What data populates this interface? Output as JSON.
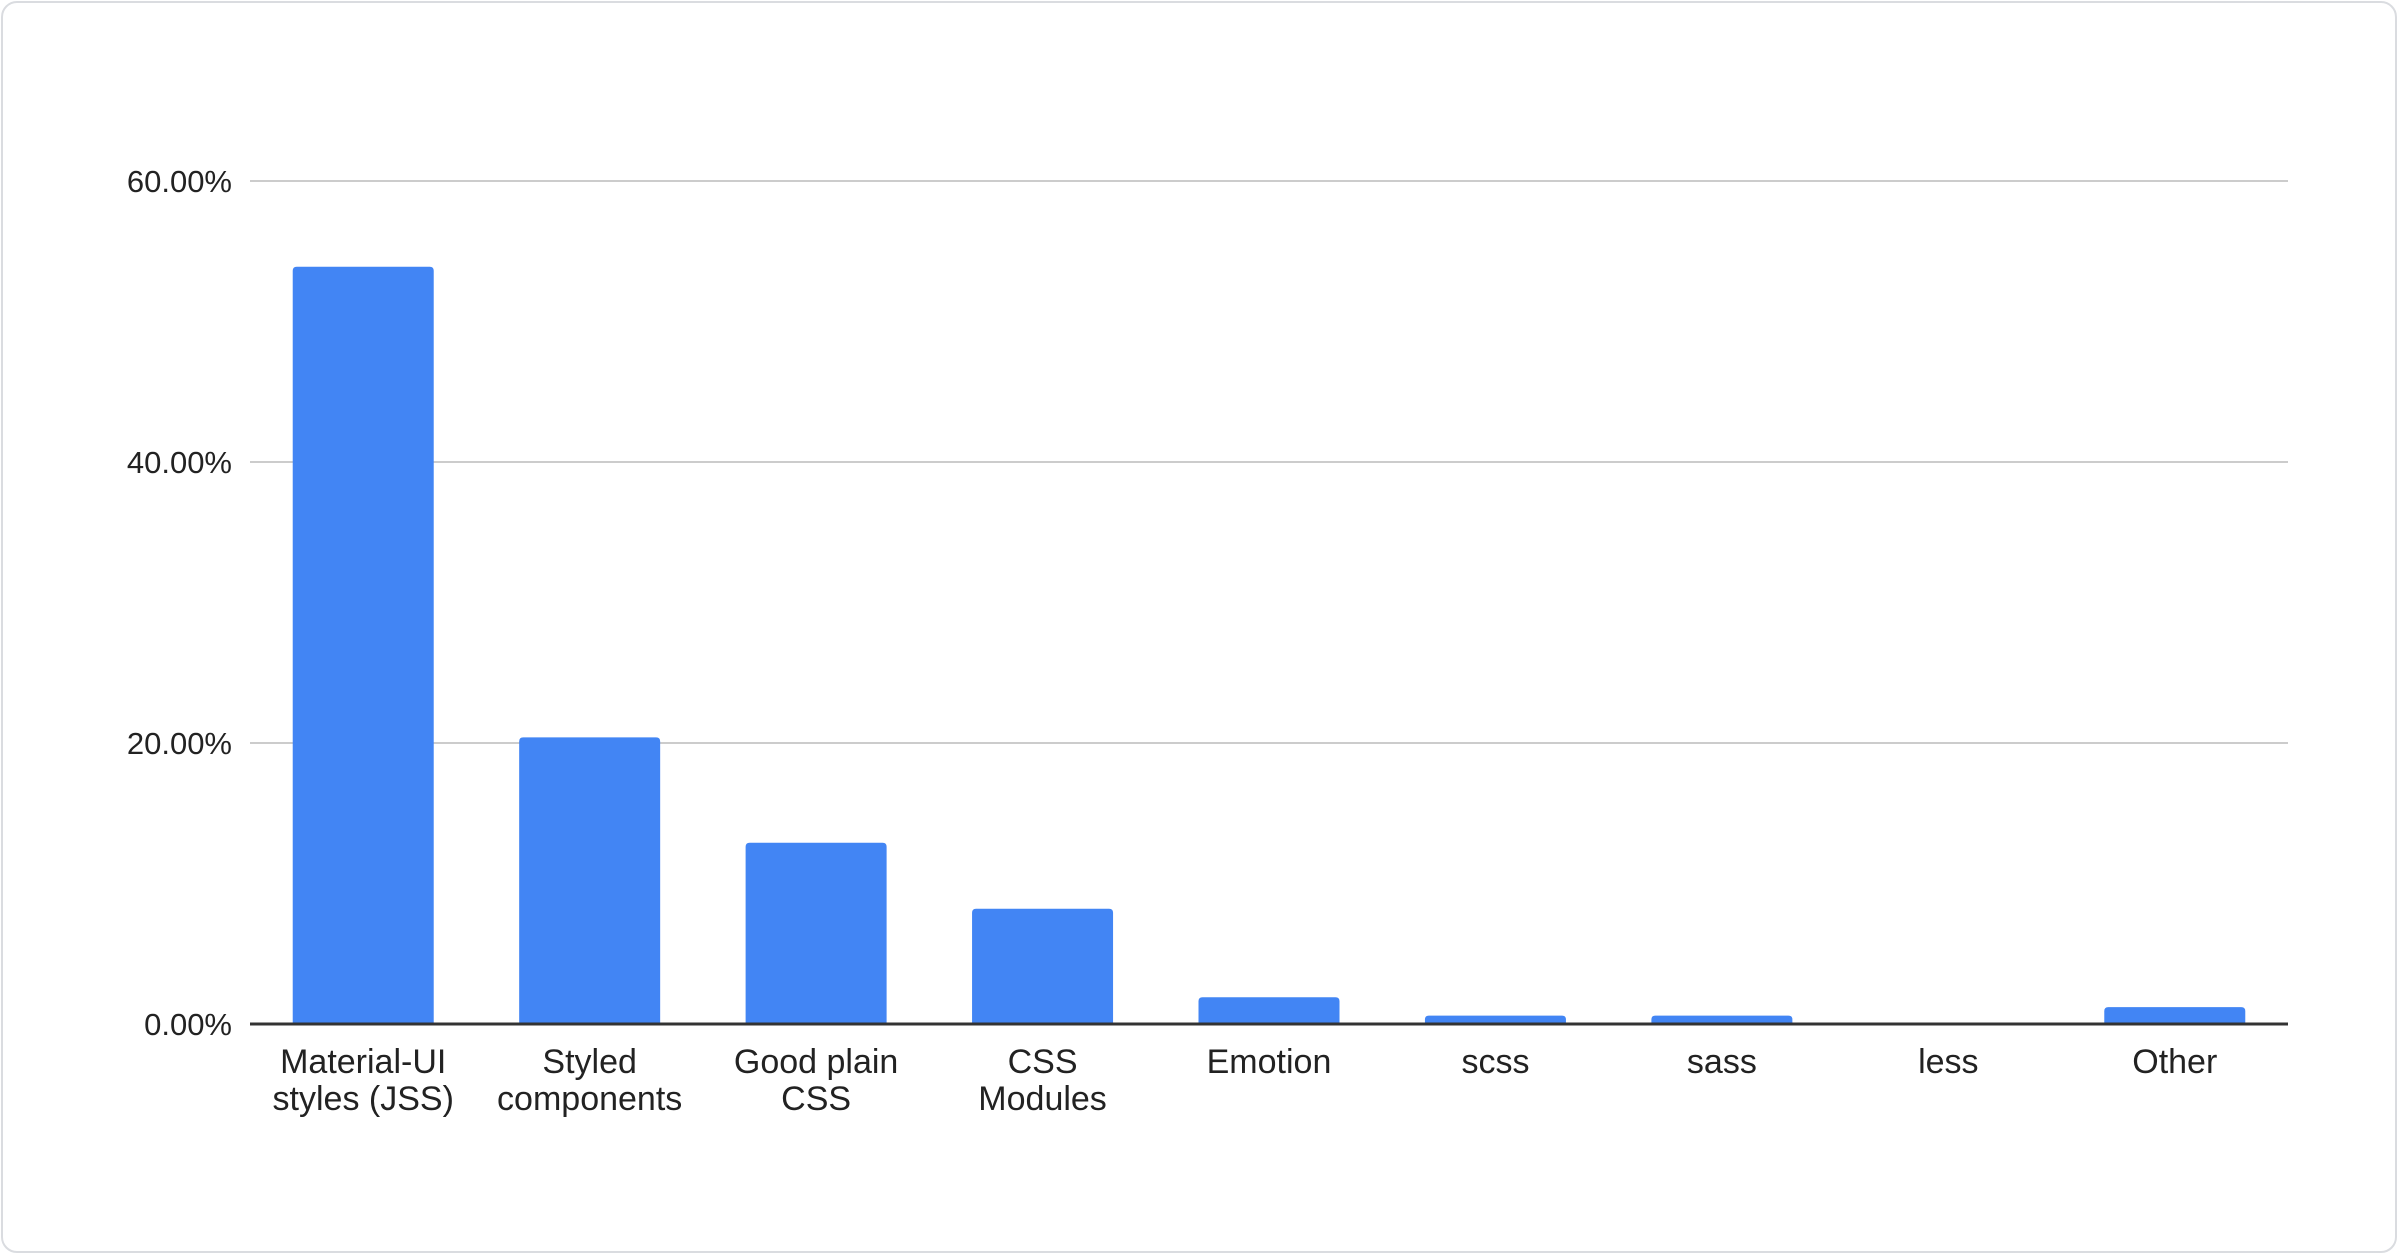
{
  "chart_data": {
    "type": "bar",
    "categories": [
      [
        "Material-UI",
        "styles (JSS)"
      ],
      [
        "Styled",
        "components"
      ],
      [
        "Good plain",
        "CSS"
      ],
      [
        "CSS",
        "Modules"
      ],
      [
        "Emotion"
      ],
      [
        "scss"
      ],
      [
        "sass"
      ],
      [
        "less"
      ],
      [
        "Other"
      ]
    ],
    "values": [
      53.9,
      20.4,
      12.9,
      8.2,
      1.9,
      0.6,
      0.6,
      0,
      1.2
    ],
    "ylim": [
      0,
      60
    ],
    "yticks": [
      0,
      20,
      40,
      60
    ],
    "ytick_labels": [
      "0.00%",
      "20.00%",
      "40.00%",
      "60.00%"
    ],
    "title": "",
    "xlabel": "",
    "ylabel": "",
    "grid": true,
    "bar_color": "#4285f4",
    "grid_color": "#cccccc",
    "axis_color": "#333333"
  }
}
